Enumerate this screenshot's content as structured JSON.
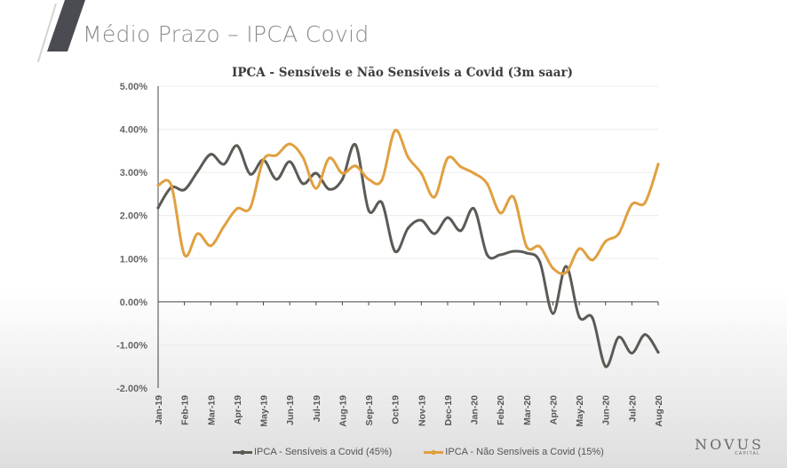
{
  "slide": {
    "title": "Médio Prazo  – IPCA Covid",
    "logo_main": "NOVUS",
    "logo_sub": "CAPITAL"
  },
  "chart_data": {
    "type": "line",
    "title": "IPCA - Sensíveis e Não Sensíveis a Covid (3m saar)",
    "xlabel": "",
    "ylabel": "",
    "ylim": [
      -2.0,
      5.0
    ],
    "yticks": [
      5.0,
      4.0,
      3.0,
      2.0,
      1.0,
      0.0,
      -1.0,
      -2.0
    ],
    "ytick_labels": [
      "5.00%",
      "4.00%",
      "3.00%",
      "2.00%",
      "1.00%",
      "0.00%",
      "-1.00%",
      "-2.00%"
    ],
    "x_tick_labels": [
      "Jan-19",
      "Feb-19",
      "Mar-19",
      "Apr-19",
      "May-19",
      "Jun-19",
      "Jul-19",
      "Aug-19",
      "Sep-19",
      "Oct-19",
      "Nov-19",
      "Dec-19",
      "Jan-20",
      "Feb-20",
      "Mar-20",
      "Apr-20",
      "May-20",
      "Jun-20",
      "Jul-20",
      "Aug-20"
    ],
    "x_note": "Semi-monthly observations; index 0 = Jan-19, index 38 = Aug-20",
    "grid": "horizontal",
    "legend_position": "bottom",
    "series": [
      {
        "name": "IPCA - Sensíveis a Covid (45%)",
        "color": "#5b5b55",
        "values": [
          2.18,
          2.65,
          2.6,
          3.02,
          3.42,
          3.19,
          3.62,
          2.96,
          3.29,
          2.84,
          3.25,
          2.74,
          2.98,
          2.61,
          2.84,
          3.64,
          2.12,
          2.3,
          1.17,
          1.71,
          1.89,
          1.58,
          1.95,
          1.65,
          2.16,
          1.09,
          1.09,
          1.17,
          1.13,
          0.93,
          -0.27,
          0.82,
          -0.35,
          -0.37,
          -1.5,
          -0.82,
          -1.19,
          -0.76,
          -1.17
        ]
      },
      {
        "name": "IPCA - Não Sensíveis a Covid (15%)",
        "color": "#e0a040",
        "values": [
          2.7,
          2.7,
          1.09,
          1.58,
          1.3,
          1.75,
          2.16,
          2.18,
          3.29,
          3.4,
          3.66,
          3.35,
          2.63,
          3.33,
          2.98,
          3.15,
          2.84,
          2.82,
          3.97,
          3.35,
          2.98,
          2.43,
          3.33,
          3.13,
          2.98,
          2.74,
          2.06,
          2.43,
          1.28,
          1.28,
          0.78,
          0.68,
          1.23,
          0.97,
          1.4,
          1.58,
          2.26,
          2.3,
          3.19
        ]
      }
    ]
  }
}
